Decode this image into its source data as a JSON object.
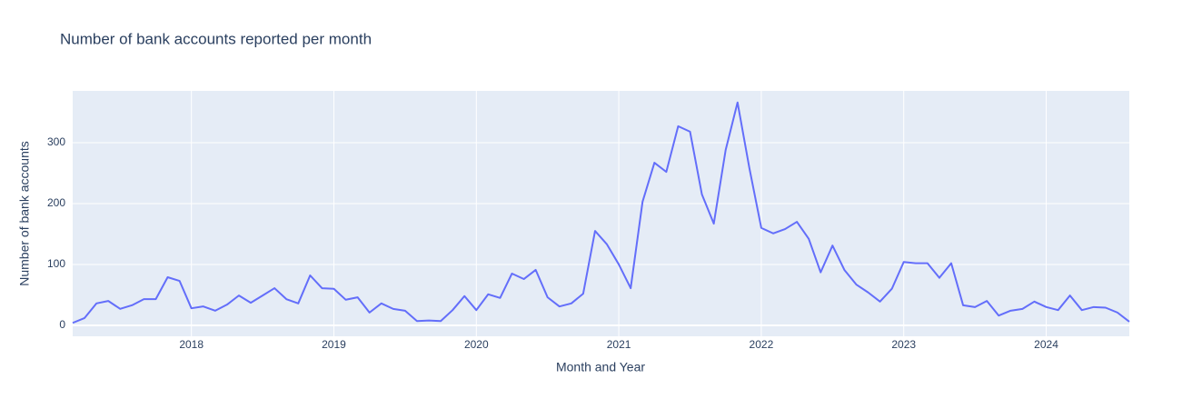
{
  "chart_data": {
    "type": "line",
    "title": "Number of bank accounts reported per month",
    "x_label": "Month and Year",
    "y_label": "Number of bank accounts",
    "color": "#636efa",
    "grid": true,
    "x": [
      "2017-03",
      "2017-04",
      "2017-05",
      "2017-06",
      "2017-07",
      "2017-08",
      "2017-09",
      "2017-10",
      "2017-11",
      "2017-12",
      "2018-01",
      "2018-02",
      "2018-03",
      "2018-04",
      "2018-05",
      "2018-06",
      "2018-07",
      "2018-08",
      "2018-09",
      "2018-10",
      "2018-11",
      "2018-12",
      "2019-01",
      "2019-02",
      "2019-03",
      "2019-04",
      "2019-05",
      "2019-06",
      "2019-07",
      "2019-08",
      "2019-09",
      "2019-10",
      "2019-11",
      "2019-12",
      "2020-01",
      "2020-02",
      "2020-03",
      "2020-04",
      "2020-05",
      "2020-06",
      "2020-07",
      "2020-08",
      "2020-09",
      "2020-10",
      "2020-11",
      "2020-12",
      "2021-01",
      "2021-02",
      "2021-03",
      "2021-04",
      "2021-05",
      "2021-06",
      "2021-07",
      "2021-08",
      "2021-09",
      "2021-10",
      "2021-11",
      "2021-12",
      "2022-01",
      "2022-02",
      "2022-03",
      "2022-04",
      "2022-05",
      "2022-06",
      "2022-07",
      "2022-08",
      "2022-09",
      "2022-10",
      "2022-11",
      "2022-12",
      "2023-01",
      "2023-02",
      "2023-03",
      "2023-04",
      "2023-05",
      "2023-06",
      "2023-07",
      "2023-08",
      "2023-09",
      "2023-10",
      "2023-11",
      "2023-12",
      "2024-01",
      "2024-02",
      "2024-03",
      "2024-04",
      "2024-05",
      "2024-06",
      "2024-07",
      "2024-08"
    ],
    "values": [
      4,
      12,
      36,
      40,
      27,
      33,
      43,
      43,
      79,
      73,
      28,
      31,
      24,
      34,
      49,
      37,
      49,
      61,
      43,
      36,
      82,
      61,
      60,
      42,
      46,
      21,
      36,
      27,
      24,
      7,
      8,
      7,
      25,
      48,
      25,
      51,
      45,
      85,
      76,
      91,
      46,
      31,
      36,
      52,
      155,
      133,
      100,
      61,
      203,
      267,
      252,
      327,
      318,
      215,
      167,
      288,
      366,
      258,
      160,
      151,
      158,
      170,
      142,
      87,
      131,
      91,
      67,
      54,
      39,
      60,
      104,
      102,
      102,
      78,
      102,
      33,
      30,
      40,
      16,
      24,
      27,
      39,
      30,
      25,
      49,
      25,
      30,
      29,
      21,
      6
    ],
    "xlim": [
      "2017-03",
      "2024-08"
    ],
    "xticks": [
      "2018",
      "2019",
      "2020",
      "2021",
      "2022",
      "2023",
      "2024"
    ],
    "ylim": [
      -18,
      385
    ],
    "yticks": [
      0,
      100,
      200,
      300
    ]
  }
}
